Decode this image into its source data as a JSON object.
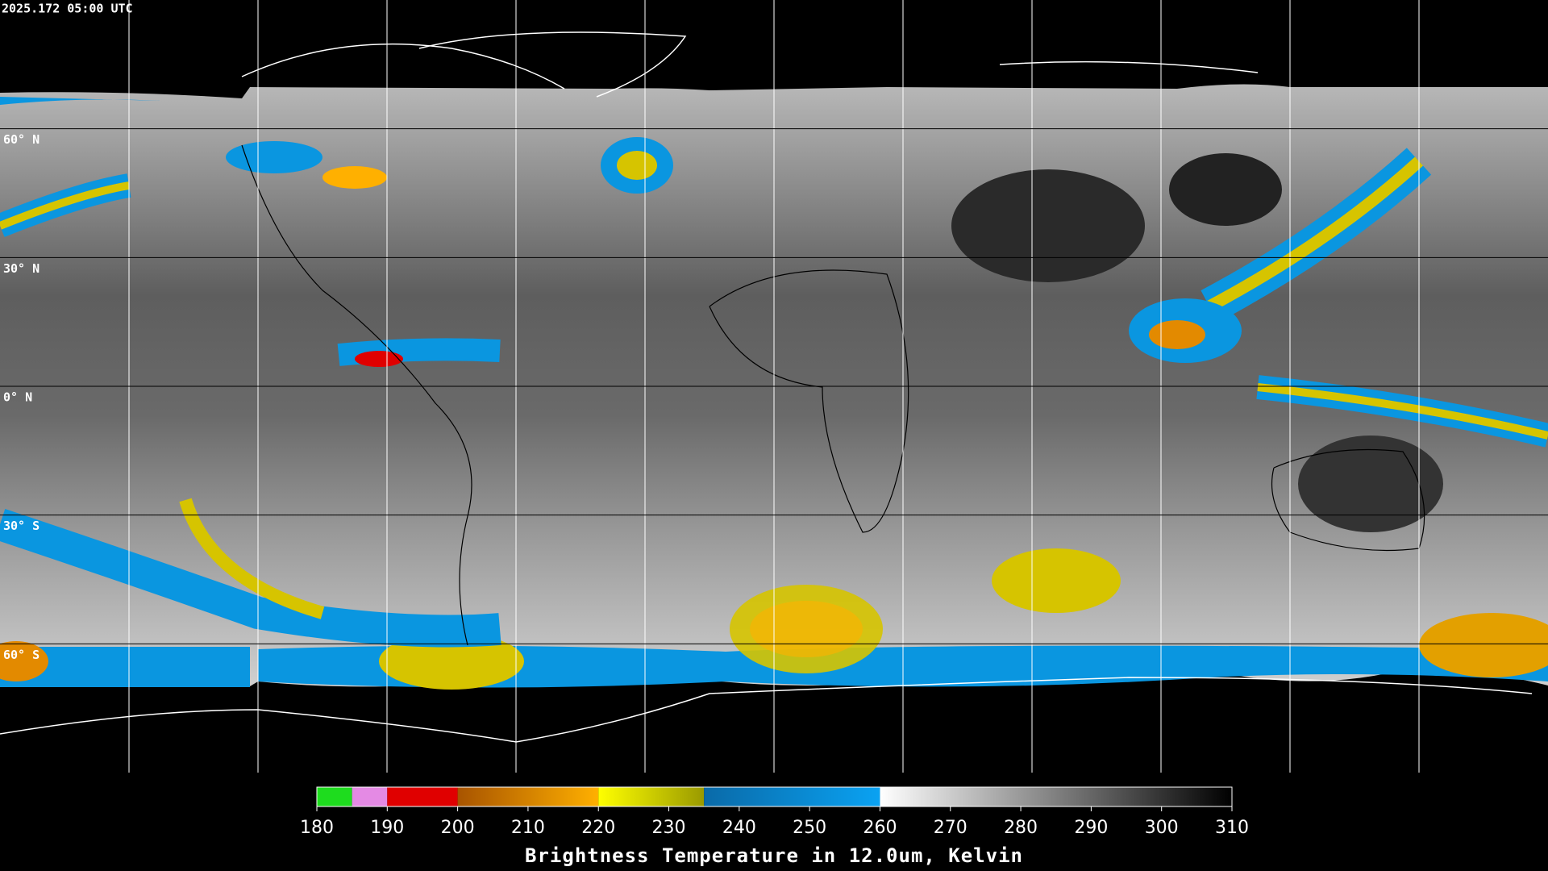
{
  "timestamp": "2025.172 05:00 UTC",
  "latitude_labels": [
    "60° N",
    "30° N",
    "0° N",
    "30° S",
    "60° S"
  ],
  "colorbar": {
    "label": "Brightness Temperature in 12.0um, Kelvin",
    "lim": [
      180,
      310
    ],
    "ticks": [
      180,
      190,
      200,
      210,
      220,
      230,
      240,
      250,
      260,
      270,
      280,
      290,
      300,
      310
    ],
    "segments": [
      {
        "lo": 180,
        "hi": 185,
        "colors": [
          "#1edc1e",
          "#1edc1e"
        ]
      },
      {
        "lo": 185,
        "hi": 190,
        "colors": [
          "#e48ae4",
          "#e48ae4"
        ]
      },
      {
        "lo": 190,
        "hi": 200,
        "colors": [
          "#e00000",
          "#e00000"
        ]
      },
      {
        "lo": 200,
        "hi": 220,
        "colors": [
          "#a85400",
          "#ffb000"
        ]
      },
      {
        "lo": 220,
        "hi": 235,
        "colors": [
          "#ffff00",
          "#9a9a00"
        ]
      },
      {
        "lo": 235,
        "hi": 260,
        "colors": [
          "#0a6aa8",
          "#0aa2f2"
        ]
      },
      {
        "lo": 260,
        "hi": 310,
        "colors": [
          "#ffffff",
          "#000000"
        ]
      }
    ]
  }
}
